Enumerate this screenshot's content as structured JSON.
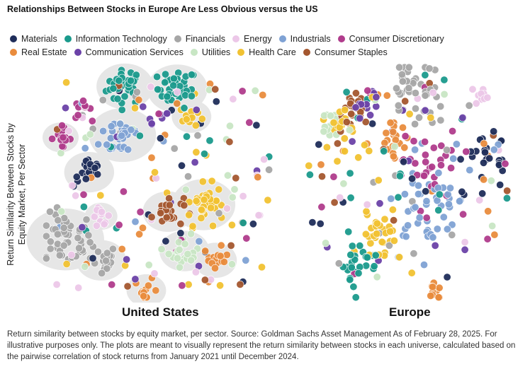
{
  "title": "Relationships Between Stocks in Europe Are Less Obvious versus the US",
  "chart_data": {
    "type": "scatter",
    "title": "Relationships Between Stocks in Europe Are Less Obvious versus the US",
    "ylabel": "Return Similarity Between Stocks by Equity Market, Per Sector",
    "xlabel": "",
    "legend_position": "top",
    "sectors": [
      {
        "name": "Materials",
        "color": "#1f2d5a"
      },
      {
        "name": "Information Technology",
        "color": "#1a9a8c"
      },
      {
        "name": "Financials",
        "color": "#a6a6a6"
      },
      {
        "name": "Energy",
        "color": "#ecc7e8"
      },
      {
        "name": "Industrials",
        "color": "#7fa2d4"
      },
      {
        "name": "Consumer Discretionary",
        "color": "#b03c8c"
      },
      {
        "name": "Real Estate",
        "color": "#e98c3d"
      },
      {
        "name": "Communication Services",
        "color": "#6b42a8"
      },
      {
        "name": "Utilities",
        "color": "#c8e6c4"
      },
      {
        "name": "Health Care",
        "color": "#f1c232"
      },
      {
        "name": "Consumer Staples",
        "color": "#a4572f"
      }
    ],
    "legend_rows": [
      [
        "Materials",
        "Information Technology",
        "Financials",
        "Energy",
        "Industrials",
        "Consumer Discretionary"
      ],
      [
        "Real Estate",
        "Communication Services",
        "Utilities",
        "Health Care",
        "Consumer Staples"
      ]
    ],
    "panels": [
      {
        "name": "United States",
        "clusters": [
          {
            "sector": "Information Technology",
            "x": 0.34,
            "y": 0.92,
            "n": 34,
            "spread": 0.07
          },
          {
            "sector": "Information Technology",
            "x": 0.56,
            "y": 0.91,
            "n": 34,
            "spread": 0.075
          },
          {
            "sector": "Financials",
            "x": 0.09,
            "y": 0.26,
            "n": 48,
            "spread": 0.1
          },
          {
            "sector": "Financials",
            "x": 0.24,
            "y": 0.17,
            "n": 22,
            "spread": 0.06
          },
          {
            "sector": "Industrials",
            "x": 0.33,
            "y": 0.71,
            "n": 28,
            "spread": 0.085
          },
          {
            "sector": "Health Care",
            "x": 0.67,
            "y": 0.41,
            "n": 36,
            "spread": 0.08
          },
          {
            "sector": "Health Care",
            "x": 0.62,
            "y": 0.79,
            "n": 12,
            "spread": 0.045
          },
          {
            "sector": "Consumer Staples",
            "x": 0.52,
            "y": 0.38,
            "n": 24,
            "spread": 0.06
          },
          {
            "sector": "Utilities",
            "x": 0.59,
            "y": 0.21,
            "n": 22,
            "spread": 0.06
          },
          {
            "sector": "Real Estate",
            "x": 0.72,
            "y": 0.17,
            "n": 16,
            "spread": 0.05
          },
          {
            "sector": "Real Estate",
            "x": 0.43,
            "y": 0.04,
            "n": 12,
            "spread": 0.045
          },
          {
            "sector": "Energy",
            "x": 0.24,
            "y": 0.36,
            "n": 12,
            "spread": 0.035
          },
          {
            "sector": "Consumer Discretionary",
            "x": 0.07,
            "y": 0.7,
            "n": 14,
            "spread": 0.04
          },
          {
            "sector": "Consumer Discretionary",
            "x": 0.16,
            "y": 0.82,
            "n": 10,
            "spread": 0.035
          },
          {
            "sector": "Materials",
            "x": 0.19,
            "y": 0.55,
            "n": 18,
            "spread": 0.06
          },
          {
            "sector": "Communication Services",
            "x": 0.47,
            "y": 0.8,
            "n": 8,
            "spread": 0.07
          }
        ]
      },
      {
        "name": "Europe",
        "clusters": [
          {
            "sector": "Financials",
            "x": 0.55,
            "y": 0.88,
            "n": 40,
            "spread": 0.12
          },
          {
            "sector": "Industrials",
            "x": 0.62,
            "y": 0.38,
            "n": 45,
            "spread": 0.17
          },
          {
            "sector": "Health Care",
            "x": 0.37,
            "y": 0.28,
            "n": 30,
            "spread": 0.09
          },
          {
            "sector": "Health Care",
            "x": 0.22,
            "y": 0.72,
            "n": 18,
            "spread": 0.07
          },
          {
            "sector": "Information Technology",
            "x": 0.28,
            "y": 0.16,
            "n": 28,
            "spread": 0.1
          },
          {
            "sector": "Real Estate",
            "x": 0.42,
            "y": 0.68,
            "n": 20,
            "spread": 0.07
          },
          {
            "sector": "Real Estate",
            "x": 0.62,
            "y": 0.05,
            "n": 10,
            "spread": 0.04
          },
          {
            "sector": "Consumer Staples",
            "x": 0.25,
            "y": 0.8,
            "n": 22,
            "spread": 0.08
          },
          {
            "sector": "Utilities",
            "x": 0.15,
            "y": 0.74,
            "n": 14,
            "spread": 0.05
          },
          {
            "sector": "Energy",
            "x": 0.85,
            "y": 0.87,
            "n": 10,
            "spread": 0.04
          },
          {
            "sector": "Materials",
            "x": 0.88,
            "y": 0.6,
            "n": 20,
            "spread": 0.1
          },
          {
            "sector": "Consumer Discretionary",
            "x": 0.6,
            "y": 0.58,
            "n": 28,
            "spread": 0.13
          },
          {
            "sector": "Communication Services",
            "x": 0.31,
            "y": 0.83,
            "n": 12,
            "spread": 0.06
          }
        ]
      }
    ]
  },
  "panel_labels": {
    "us": "United States",
    "eu": "Europe"
  },
  "footnote": "Return similarity between stocks by equity market, per sector. Source: Goldman Sachs Asset Management As of February 28, 2025. For illustrative purposes only. The plots are meant to visually represent the return similarity between stocks in each universe, calculated based on the pairwise correlation of stock returns from January 2021 until December 2024."
}
